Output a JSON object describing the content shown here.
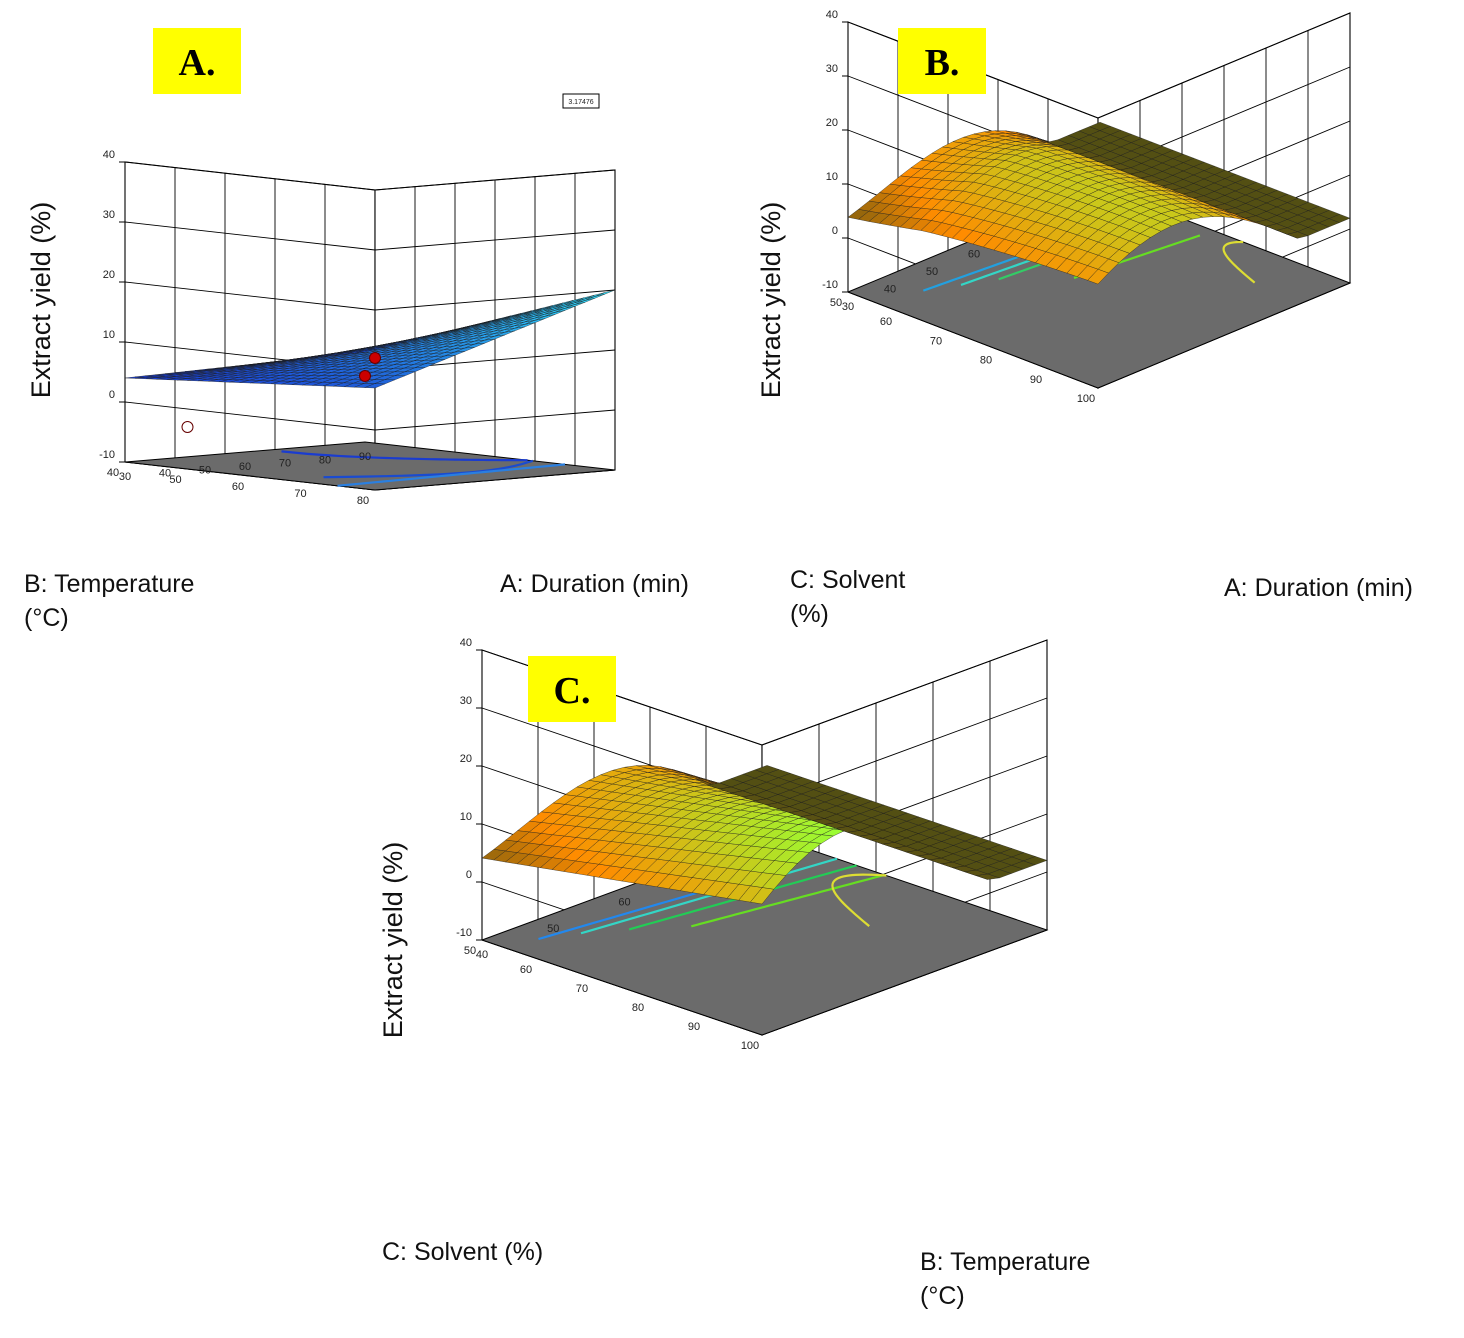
{
  "figure": {
    "panels": [
      {
        "label": "A.",
        "zlabel": "Extract yield (%)",
        "xlabel": "A: Duration (min)",
        "ylabel": [
          "B: Temperature",
          "(°C)"
        ],
        "legend_box": "3.17476"
      },
      {
        "label": "B.",
        "zlabel": "Extract yield (%)",
        "xlabel": "A: Duration (min)",
        "ylabel": [
          "C: Solvent",
          "(%)"
        ]
      },
      {
        "label": "C.",
        "zlabel": "Extract yield (%)",
        "xlabel": "B: Temperature",
        "xlabel2": "(°C)",
        "ylabel": [
          "C: Solvent (%)"
        ]
      }
    ]
  },
  "colors": {
    "panel_label_bg": "#ffff00",
    "floor": "#6b6b6b",
    "grid": "#000000",
    "surface_a_low": "#1a3ccf",
    "surface_a_high": "#33e6ff",
    "surface_bc_low": "#ff8c00",
    "surface_bc_high": "#99ff33",
    "design_point": "#cc0000"
  },
  "chart_data": [
    {
      "type": "surface",
      "title": "A.",
      "xlabel": "A: Duration (min)",
      "ylabel": "B: Temperature (°C)",
      "zlabel": "Extract yield (%)",
      "x_ticks": [
        30,
        40,
        50,
        60,
        70,
        80,
        90
      ],
      "y_ticks": [
        40,
        50,
        60,
        70,
        80
      ],
      "z_ticks": [
        -10,
        0,
        10,
        20,
        30,
        40
      ],
      "xlim": [
        30,
        90
      ],
      "ylim": [
        40,
        80
      ],
      "zlim": [
        -10,
        40
      ],
      "surface_corners": {
        "x30_y40": 4,
        "x90_y40": 5,
        "x30_y80": 7,
        "x90_y80": 20
      },
      "design_points": [
        {
          "x": 30,
          "y": 80,
          "z": 12
        },
        {
          "x": 90,
          "y": 40,
          "z": 1
        },
        {
          "x": 30,
          "y": 50,
          "z": -3
        }
      ],
      "legend_box_text": "3.17476",
      "colormap": "blue-cyan",
      "contours_on_floor": true
    },
    {
      "type": "surface",
      "title": "B.",
      "xlabel": "A: Duration (min)",
      "ylabel": "C: Solvent (%)",
      "zlabel": "Extract yield (%)",
      "x_ticks": [
        30,
        40,
        50,
        60,
        70,
        80,
        90
      ],
      "y_ticks": [
        50,
        60,
        70,
        80,
        90,
        100
      ],
      "z_ticks": [
        -10,
        0,
        10,
        20,
        30,
        40
      ],
      "xlim": [
        30,
        90
      ],
      "ylim": [
        50,
        100
      ],
      "zlim": [
        -10,
        40
      ],
      "surface_peak": {
        "x": 60,
        "y": 65,
        "z": 20
      },
      "surface_min_corner": {
        "x": 30,
        "y": 100,
        "z": 2
      },
      "colormap": "orange-yellow-green",
      "contours_on_floor": true
    },
    {
      "type": "surface",
      "title": "C.",
      "xlabel": "B: Temperature (°C)",
      "ylabel": "C: Solvent (%)",
      "zlabel": "Extract yield (%)",
      "x_ticks": [
        40,
        50,
        60,
        70,
        80
      ],
      "y_ticks": [
        50,
        60,
        70,
        80,
        90,
        100
      ],
      "z_ticks": [
        -10,
        0,
        10,
        20,
        30,
        40
      ],
      "xlim": [
        40,
        80
      ],
      "ylim": [
        50,
        100
      ],
      "zlim": [
        -10,
        40
      ],
      "surface_peak": {
        "x": 60,
        "y": 65,
        "z": 20
      },
      "surface_min_corner": {
        "x": 40,
        "y": 100,
        "z": 2
      },
      "colormap": "orange-yellow-green",
      "contours_on_floor": true
    }
  ]
}
